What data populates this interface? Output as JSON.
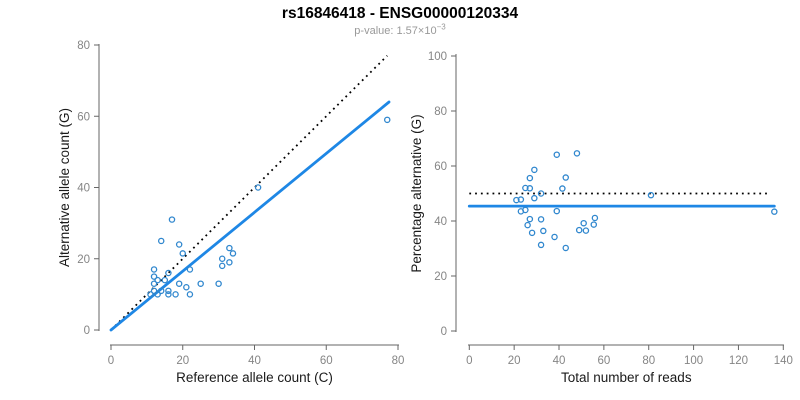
{
  "header": {
    "title": "rs16846418 - ENSG00000120334",
    "p_label": "p-value: 1.57×10",
    "p_exponent": "−3"
  },
  "colors": {
    "background": "#FFFFFF",
    "accent_line": "#1E87E5",
    "accent_point": "#3087CE",
    "dotted_line": "#000000",
    "axis": "#666666",
    "tick_label": "#858585",
    "axis_title": "#1A1A1A",
    "title": "#000000",
    "subtitle": "#999999"
  },
  "chart_data": [
    {
      "type": "scatter",
      "name": "allele-counts-panel",
      "xlabel": "Reference allele count (C)",
      "ylabel": "Alternative allele count (G)",
      "xlim": [
        0,
        80
      ],
      "ylim": [
        0,
        80
      ],
      "xticks": [
        0,
        20,
        40,
        60,
        80
      ],
      "yticks": [
        0,
        20,
        40,
        60,
        80
      ],
      "grid": false,
      "legend": "none",
      "marker": "open-circle",
      "points": [
        [
          77,
          59
        ],
        [
          41,
          40
        ],
        [
          17,
          31
        ],
        [
          14,
          25
        ],
        [
          19,
          24
        ],
        [
          20,
          21.5
        ],
        [
          33,
          23
        ],
        [
          34,
          21.5
        ],
        [
          31,
          20
        ],
        [
          33,
          19
        ],
        [
          31,
          18
        ],
        [
          22,
          17
        ],
        [
          12,
          17
        ],
        [
          16,
          16
        ],
        [
          12,
          15
        ],
        [
          15,
          14
        ],
        [
          13,
          14
        ],
        [
          12,
          13
        ],
        [
          19,
          13
        ],
        [
          25,
          13
        ],
        [
          30,
          13
        ],
        [
          21,
          12
        ],
        [
          12,
          11
        ],
        [
          14,
          11
        ],
        [
          16,
          11
        ],
        [
          11,
          10
        ],
        [
          13,
          10
        ],
        [
          16,
          10
        ],
        [
          18,
          10
        ],
        [
          22,
          10
        ]
      ],
      "lines": [
        {
          "name": "identity-line",
          "style": "dotted",
          "color": "#000000",
          "from": [
            0,
            0
          ],
          "to": [
            77,
            77
          ]
        },
        {
          "name": "regression-line",
          "style": "solid",
          "color": "#1E87E5",
          "from": [
            0,
            0
          ],
          "to": [
            77.5,
            64
          ]
        }
      ]
    },
    {
      "type": "scatter",
      "name": "percentage-panel",
      "xlabel": "Total number of reads",
      "ylabel": "Percentage alternative (G)",
      "xlim": [
        0,
        140
      ],
      "ylim": [
        0,
        100
      ],
      "xticks": [
        0,
        20,
        40,
        60,
        80,
        100,
        120,
        140
      ],
      "yticks": [
        0,
        20,
        40,
        60,
        80,
        100
      ],
      "grid": false,
      "legend": "none",
      "marker": "open-circle",
      "points": [
        [
          136,
          43.4
        ],
        [
          81,
          49.4
        ],
        [
          48,
          64.6
        ],
        [
          39,
          64.1
        ],
        [
          43,
          55.8
        ],
        [
          41.5,
          51.8
        ],
        [
          56,
          41.1
        ],
        [
          55.5,
          38.7
        ],
        [
          51,
          39.2
        ],
        [
          52,
          36.5
        ],
        [
          49,
          36.7
        ],
        [
          39,
          43.6
        ],
        [
          29,
          58.6
        ],
        [
          32,
          50
        ],
        [
          27,
          55.6
        ],
        [
          29,
          48.3
        ],
        [
          27,
          51.9
        ],
        [
          25,
          52
        ],
        [
          32,
          40.6
        ],
        [
          38,
          34.2
        ],
        [
          43,
          30.2
        ],
        [
          33,
          36.4
        ],
        [
          23,
          47.8
        ],
        [
          25,
          44
        ],
        [
          27,
          40.7
        ],
        [
          21,
          47.6
        ],
        [
          23,
          43.5
        ],
        [
          26,
          38.5
        ],
        [
          28,
          35.7
        ],
        [
          32,
          31.3
        ]
      ],
      "lines": [
        {
          "name": "expected-percentage-line",
          "style": "dotted",
          "color": "#000000",
          "from": [
            0,
            50
          ],
          "to": [
            133,
            50
          ]
        },
        {
          "name": "mean-percentage-line",
          "style": "solid",
          "color": "#1E87E5",
          "from": [
            0,
            45.4
          ],
          "to": [
            136,
            45.4
          ]
        }
      ]
    }
  ]
}
